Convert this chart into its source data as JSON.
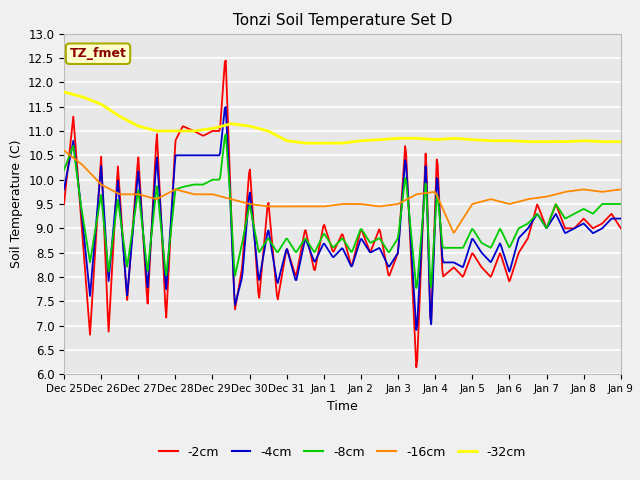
{
  "title": "Tonzi Soil Temperature Set D",
  "xlabel": "Time",
  "ylabel": "Soil Temperature (C)",
  "ylim": [
    6.0,
    13.0
  ],
  "background_color": "#f0f0f0",
  "plot_bg_color": "#e8e8e8",
  "grid_color": "#ffffff",
  "label_box": "TZ_fmet",
  "label_box_bg": "#ffffcc",
  "label_box_border": "#aaaa00",
  "label_box_text": "#8b0000",
  "line_colors": [
    "#ff0000",
    "#0000cc",
    "#00cc00",
    "#ff8800",
    "#ffff00"
  ],
  "line_widths": [
    1.3,
    1.3,
    1.3,
    1.3,
    2.0
  ],
  "legend_entries": [
    "-2cm",
    "-4cm",
    "-8cm",
    "-16cm",
    "-32cm"
  ],
  "xtick_labels": [
    "Dec 25",
    "Dec 26",
    "Dec 27",
    "Dec 28",
    "Dec 29",
    "Dec 30",
    "Dec 31",
    "Jan 1",
    "Jan 2",
    "Jan 3",
    "Jan 4",
    "Jan 5",
    "Jan 6",
    "Jan 7",
    "Jan 8",
    "Jan 9"
  ],
  "yticks": [
    6.0,
    6.5,
    7.0,
    7.5,
    8.0,
    8.5,
    9.0,
    9.5,
    10.0,
    10.5,
    11.0,
    11.5,
    12.0,
    12.5,
    13.0
  ],
  "red_t": [
    0.0,
    0.25,
    0.45,
    0.7,
    1.0,
    1.2,
    1.45,
    1.7,
    2.0,
    2.25,
    2.5,
    2.75,
    3.0,
    3.2,
    3.5,
    3.75,
    4.0,
    4.2,
    4.35,
    4.45,
    4.6,
    4.8,
    5.0,
    5.25,
    5.5,
    5.75,
    6.0,
    6.25,
    6.5,
    6.75,
    7.0,
    7.25,
    7.5,
    7.75,
    8.0,
    8.25,
    8.5,
    8.75,
    9.0,
    9.2,
    9.5,
    9.75,
    9.88,
    10.05,
    10.2,
    10.5,
    10.75,
    11.0,
    11.25,
    11.5,
    11.75,
    12.0,
    12.25,
    12.5,
    12.75,
    13.0,
    13.25,
    13.5,
    13.75,
    14.0,
    14.25,
    14.5,
    14.75,
    15.0
  ],
  "red_v": [
    9.5,
    11.3,
    9.3,
    6.8,
    10.5,
    6.85,
    10.3,
    7.5,
    10.5,
    7.4,
    11.0,
    7.1,
    10.8,
    11.1,
    11.0,
    10.9,
    11.0,
    11.0,
    12.6,
    10.5,
    7.3,
    8.2,
    10.3,
    7.5,
    9.6,
    7.5,
    8.6,
    8.0,
    9.0,
    8.1,
    9.1,
    8.5,
    8.9,
    8.2,
    9.0,
    8.5,
    9.0,
    8.0,
    8.5,
    10.8,
    6.0,
    10.7,
    6.8,
    10.6,
    8.0,
    8.2,
    8.0,
    8.5,
    8.2,
    8.0,
    8.5,
    7.9,
    8.5,
    8.8,
    9.5,
    9.0,
    9.5,
    9.0,
    9.0,
    9.2,
    9.0,
    9.1,
    9.3,
    9.0
  ],
  "blue_t": [
    0.0,
    0.25,
    0.45,
    0.7,
    1.0,
    1.2,
    1.45,
    1.7,
    2.0,
    2.25,
    2.5,
    2.75,
    3.0,
    3.2,
    3.5,
    3.75,
    4.0,
    4.2,
    4.35,
    4.45,
    4.6,
    4.8,
    5.0,
    5.25,
    5.5,
    5.75,
    6.0,
    6.25,
    6.5,
    6.75,
    7.0,
    7.25,
    7.5,
    7.75,
    8.0,
    8.25,
    8.5,
    8.75,
    9.0,
    9.2,
    9.5,
    9.75,
    9.88,
    10.05,
    10.2,
    10.5,
    10.75,
    11.0,
    11.25,
    11.5,
    11.75,
    12.0,
    12.25,
    12.5,
    12.75,
    13.0,
    13.25,
    13.5,
    13.75,
    14.0,
    14.25,
    14.5,
    14.75,
    15.0
  ],
  "blue_v": [
    9.8,
    10.8,
    9.5,
    7.6,
    10.3,
    7.9,
    10.0,
    7.6,
    10.2,
    7.75,
    10.5,
    7.7,
    10.5,
    10.5,
    10.5,
    10.5,
    10.5,
    10.5,
    11.6,
    10.1,
    7.4,
    8.0,
    9.8,
    7.9,
    9.0,
    7.85,
    8.6,
    7.9,
    8.8,
    8.3,
    8.7,
    8.4,
    8.6,
    8.2,
    8.8,
    8.5,
    8.6,
    8.2,
    8.5,
    10.5,
    6.8,
    10.4,
    6.8,
    10.2,
    8.3,
    8.3,
    8.2,
    8.8,
    8.5,
    8.3,
    8.7,
    8.1,
    8.8,
    9.0,
    9.3,
    9.0,
    9.3,
    8.9,
    9.0,
    9.1,
    8.9,
    9.0,
    9.2,
    9.2
  ],
  "green_t": [
    0.0,
    0.25,
    0.45,
    0.7,
    1.0,
    1.2,
    1.45,
    1.7,
    2.0,
    2.25,
    2.5,
    2.75,
    3.0,
    3.2,
    3.5,
    3.75,
    4.0,
    4.2,
    4.35,
    4.45,
    4.6,
    4.8,
    5.0,
    5.25,
    5.5,
    5.75,
    6.0,
    6.25,
    6.5,
    6.75,
    7.0,
    7.25,
    7.5,
    7.75,
    8.0,
    8.25,
    8.5,
    8.75,
    9.0,
    9.2,
    9.5,
    9.75,
    9.88,
    10.05,
    10.2,
    10.5,
    10.75,
    11.0,
    11.25,
    11.5,
    11.75,
    12.0,
    12.25,
    12.5,
    12.75,
    13.0,
    13.25,
    13.5,
    13.75,
    14.0,
    14.25,
    14.5,
    14.75,
    15.0
  ],
  "green_v": [
    10.2,
    10.7,
    9.5,
    8.3,
    9.7,
    8.1,
    9.6,
    8.2,
    9.8,
    8.1,
    9.9,
    8.0,
    9.8,
    9.85,
    9.9,
    9.9,
    10.0,
    10.0,
    11.0,
    10.0,
    8.0,
    8.7,
    9.5,
    8.5,
    8.8,
    8.5,
    8.8,
    8.5,
    8.8,
    8.5,
    8.9,
    8.6,
    8.8,
    8.5,
    9.0,
    8.7,
    8.8,
    8.5,
    8.8,
    10.1,
    7.7,
    10.0,
    7.65,
    9.8,
    8.6,
    8.6,
    8.6,
    9.0,
    8.7,
    8.6,
    9.0,
    8.6,
    9.0,
    9.1,
    9.3,
    9.0,
    9.5,
    9.2,
    9.3,
    9.4,
    9.3,
    9.5,
    9.5,
    9.5
  ],
  "orange_t": [
    0.0,
    0.5,
    1.0,
    1.5,
    2.0,
    2.5,
    3.0,
    3.5,
    4.0,
    4.5,
    5.0,
    5.5,
    6.0,
    6.5,
    7.0,
    7.5,
    8.0,
    8.5,
    9.0,
    9.5,
    10.0,
    10.5,
    11.0,
    11.5,
    12.0,
    12.5,
    13.0,
    13.5,
    14.0,
    14.5,
    15.0
  ],
  "orange_v": [
    10.6,
    10.3,
    9.9,
    9.7,
    9.7,
    9.6,
    9.8,
    9.7,
    9.7,
    9.6,
    9.5,
    9.45,
    9.45,
    9.45,
    9.45,
    9.5,
    9.5,
    9.45,
    9.5,
    9.7,
    9.75,
    8.9,
    9.5,
    9.6,
    9.5,
    9.6,
    9.65,
    9.75,
    9.8,
    9.75,
    9.8
  ],
  "yellow_t": [
    0.0,
    0.5,
    1.0,
    1.5,
    2.0,
    2.5,
    3.0,
    3.5,
    4.0,
    4.5,
    5.0,
    5.5,
    6.0,
    6.5,
    7.0,
    7.5,
    8.0,
    8.5,
    9.0,
    9.5,
    10.0,
    10.5,
    11.0,
    11.5,
    12.0,
    12.5,
    13.0,
    13.5,
    14.0,
    14.5,
    15.0
  ],
  "yellow_v": [
    11.8,
    11.7,
    11.55,
    11.3,
    11.1,
    11.0,
    11.0,
    11.0,
    11.05,
    11.15,
    11.1,
    11.0,
    10.8,
    10.75,
    10.75,
    10.75,
    10.8,
    10.82,
    10.85,
    10.85,
    10.82,
    10.85,
    10.82,
    10.8,
    10.8,
    10.78,
    10.78,
    10.78,
    10.8,
    10.78,
    10.78
  ]
}
